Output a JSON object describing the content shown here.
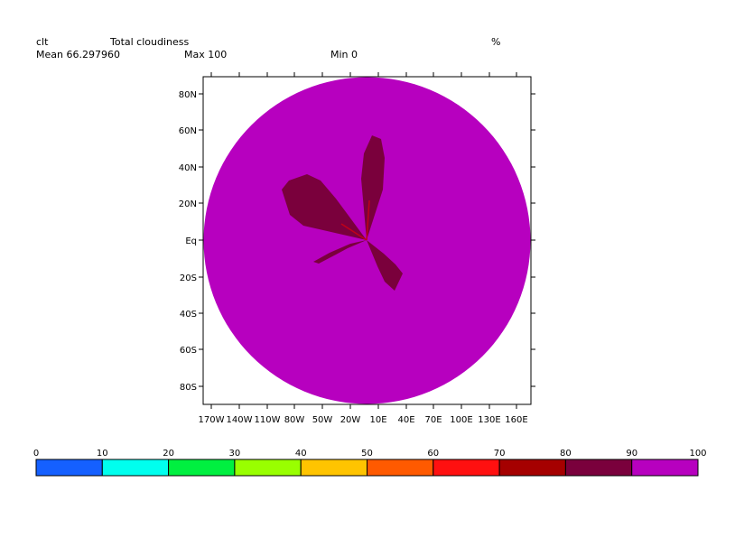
{
  "header": {
    "variable": "clt",
    "long_name": "Total cloudiness",
    "units": "%",
    "mean_label": "Mean 66.297960",
    "max_label": "Max 100",
    "min_label": "Min 0"
  },
  "map": {
    "lat_labels": [
      "80N",
      "60N",
      "40N",
      "20N",
      "Eq",
      "20S",
      "40S",
      "60S",
      "80S"
    ],
    "lon_labels": [
      "170W",
      "140W",
      "110W",
      "80W",
      "50W",
      "20W",
      "10E",
      "40E",
      "70E",
      "100E",
      "130E",
      "160E"
    ],
    "background_value": 100,
    "lobes": [
      {
        "name": "north-lobe",
        "value": 80
      },
      {
        "name": "northwest-lobe",
        "value": 80
      },
      {
        "name": "southeast-lobe",
        "value": 80
      },
      {
        "name": "southwest-lobe",
        "value": 80
      }
    ]
  },
  "colorbar": {
    "labels": [
      "0",
      "10",
      "20",
      "30",
      "40",
      "50",
      "60",
      "70",
      "80",
      "90",
      "100"
    ],
    "colors": [
      "#1560ff",
      "#00ffee",
      "#00f040",
      "#99ff00",
      "#ffc400",
      "#ff5a00",
      "#ff1010",
      "#a50000",
      "#7a003c",
      "#b700bf"
    ]
  }
}
